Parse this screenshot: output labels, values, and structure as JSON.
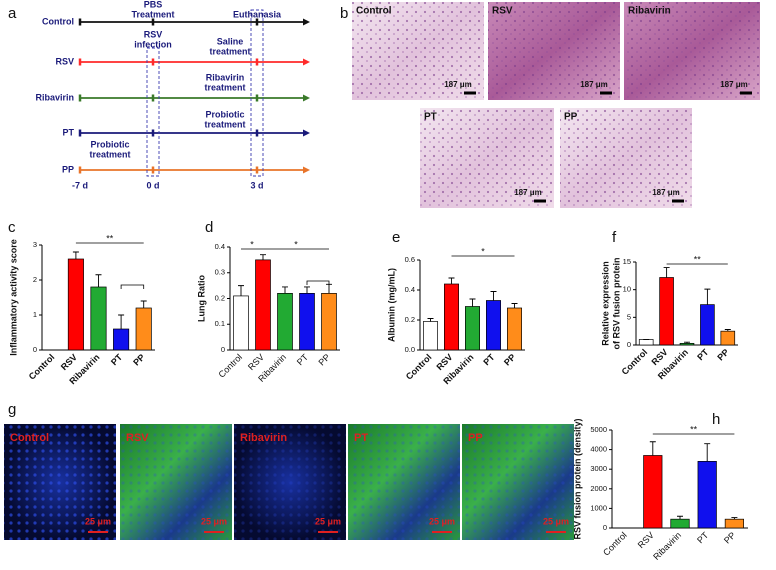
{
  "timeline": {
    "label": "a",
    "rows": [
      {
        "name": "Control",
        "color": "#111111"
      },
      {
        "name": "RSV",
        "color": "#ff2a2a"
      },
      {
        "name": "Ribavirin",
        "color": "#3a7a2a"
      },
      {
        "name": "PT",
        "color": "#1a1a7a"
      },
      {
        "name": "PP",
        "color": "#e8742a"
      }
    ],
    "notes": [
      "PBS",
      "Treatment",
      "Euthanasia",
      "RSV",
      "infection",
      "Saline",
      "treatment",
      "Ribavirin",
      "treatment",
      "Probiotic",
      "treatment",
      "Probiotic",
      "treatment"
    ],
    "ticks": [
      "-7 d",
      "0 d",
      "3 d"
    ]
  },
  "histology": {
    "label": "b",
    "panels": [
      "Control",
      "RSV",
      "Ribavirin",
      "PT",
      "PP"
    ],
    "scale": "187 μm"
  },
  "fluorescence": {
    "label": "g",
    "panels": [
      "Control",
      "RSV",
      "Ribavirin",
      "PT",
      "PP"
    ],
    "scale": "25 μm"
  },
  "chart_data": [
    {
      "type": "bar",
      "label": "c",
      "ylabel": [
        "Inflammatory activity score"
      ],
      "categories": [
        "Control",
        "RSV",
        "Ribavirin",
        "PT",
        "PP"
      ],
      "values": [
        0,
        2.6,
        1.8,
        0.6,
        1.2
      ],
      "errors": [
        0,
        0.2,
        0.35,
        0.4,
        0.2
      ],
      "colors": [
        "#ffffff",
        "#ff0000",
        "#22aa33",
        "#1010ee",
        "#ff8c1a"
      ],
      "ylim": [
        0,
        3
      ],
      "yticks": [
        0,
        1,
        2,
        3
      ],
      "annotations": [
        "**"
      ]
    },
    {
      "type": "bar",
      "label": "d",
      "ylabel": [
        "Lung Ratio"
      ],
      "categories": [
        "Control",
        "RSV",
        "Ribavirin",
        "PT",
        "PP"
      ],
      "values": [
        0.21,
        0.35,
        0.22,
        0.22,
        0.22
      ],
      "errors": [
        0.04,
        0.02,
        0.025,
        0.025,
        0.035
      ],
      "colors": [
        "#ffffff",
        "#ff0000",
        "#22aa33",
        "#1010ee",
        "#ff8c1a"
      ],
      "ylim": [
        0,
        0.4
      ],
      "yticks": [
        0,
        0.1,
        0.2,
        0.3,
        0.4
      ],
      "annotations": [
        "*",
        "*"
      ]
    },
    {
      "type": "bar",
      "label": "e",
      "ylabel": [
        "Albumin (mg/mL)"
      ],
      "categories": [
        "Control",
        "RSV",
        "Ribavirin",
        "PT",
        "PP"
      ],
      "values": [
        0.19,
        0.44,
        0.29,
        0.33,
        0.28
      ],
      "errors": [
        0.02,
        0.04,
        0.05,
        0.06,
        0.03
      ],
      "colors": [
        "#ffffff",
        "#ff0000",
        "#22aa33",
        "#1010ee",
        "#ff8c1a"
      ],
      "ylim": [
        0,
        0.6
      ],
      "yticks": [
        {
          "value": 0,
          "label": "0.0"
        },
        0.2,
        0.4,
        0.6
      ],
      "annotations": [
        "*"
      ]
    },
    {
      "type": "bar",
      "label": "f",
      "ylabel": [
        "Relative expression",
        "of RSV fusion protein"
      ],
      "categories": [
        "Control",
        "RSV",
        "Ribavirin",
        "PT",
        "PP"
      ],
      "values": [
        1,
        12.2,
        0.3,
        7.3,
        2.5
      ],
      "errors": [
        0,
        1.8,
        0.2,
        2.8,
        0.3
      ],
      "colors": [
        "#ffffff",
        "#ff0000",
        "#22aa33",
        "#1010ee",
        "#ff8c1a"
      ],
      "ylim": [
        0,
        15
      ],
      "yticks": [
        0,
        5,
        10,
        15
      ],
      "annotations": [
        "**"
      ]
    },
    {
      "type": "bar",
      "label": "h",
      "ylabel": [
        "RSV fusion protein (density)"
      ],
      "categories": [
        "Control",
        "RSV",
        "Ribavirin",
        "PT",
        "PP"
      ],
      "values": [
        0,
        3700,
        450,
        3400,
        450
      ],
      "errors": [
        0,
        700,
        150,
        900,
        80
      ],
      "colors": [
        "#ffffff",
        "#ff0000",
        "#22aa33",
        "#1010ee",
        "#ff8c1a"
      ],
      "ylim": [
        0,
        5000
      ],
      "yticks": [
        0,
        1000,
        2000,
        3000,
        4000,
        5000
      ],
      "annotations": [
        "**"
      ]
    }
  ]
}
